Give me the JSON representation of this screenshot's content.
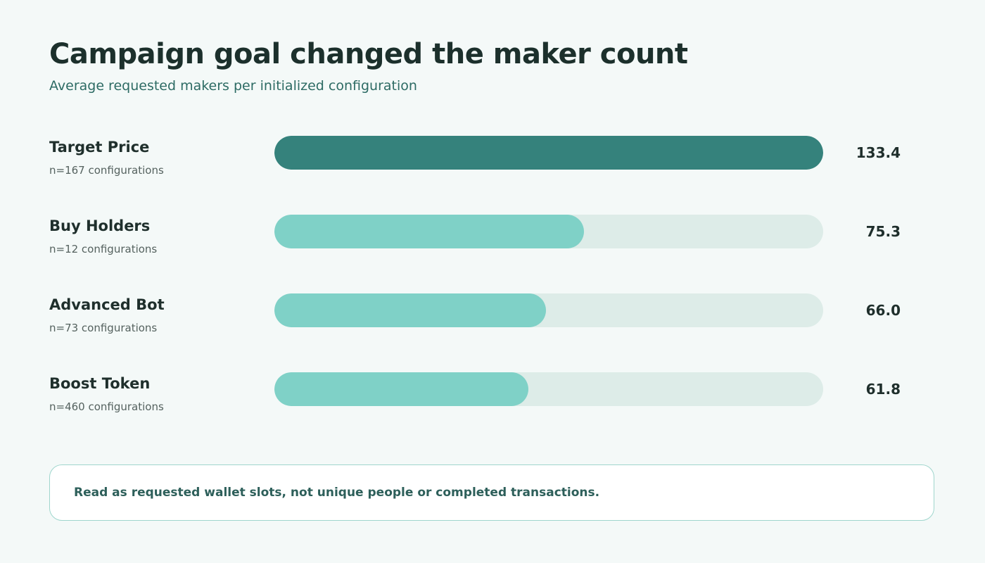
{
  "title": "Campaign goal changed the maker count",
  "subtitle": "Average requested makers per initialized configuration",
  "note": "Read as requested wallet slots, not unique people or completed transactions.",
  "colors": {
    "background": "#f4f9f8",
    "highlight_bar": "#35827c",
    "bar": "#7fd1c7",
    "track": "#ddece8",
    "note_border": "#9fd6cd",
    "subtitle_text": "#2d6b64"
  },
  "chart_data": {
    "type": "bar",
    "orientation": "horizontal",
    "title": "Campaign goal changed the maker count",
    "subtitle": "Average requested makers per initialized configuration",
    "categories": [
      "Target Price",
      "Buy Holders",
      "Advanced Bot",
      "Boost Token"
    ],
    "sample_labels": [
      "n=167 configurations",
      "n=12 configurations",
      "n=73 configurations",
      "n=460 configurations"
    ],
    "values": [
      133.4,
      75.3,
      66.0,
      61.8
    ],
    "value_labels": [
      "133.4",
      "75.3",
      "66.0",
      "61.8"
    ],
    "highlighted": "Target Price",
    "xlim": [
      0,
      133.4
    ],
    "grid": false,
    "legend": "none"
  }
}
